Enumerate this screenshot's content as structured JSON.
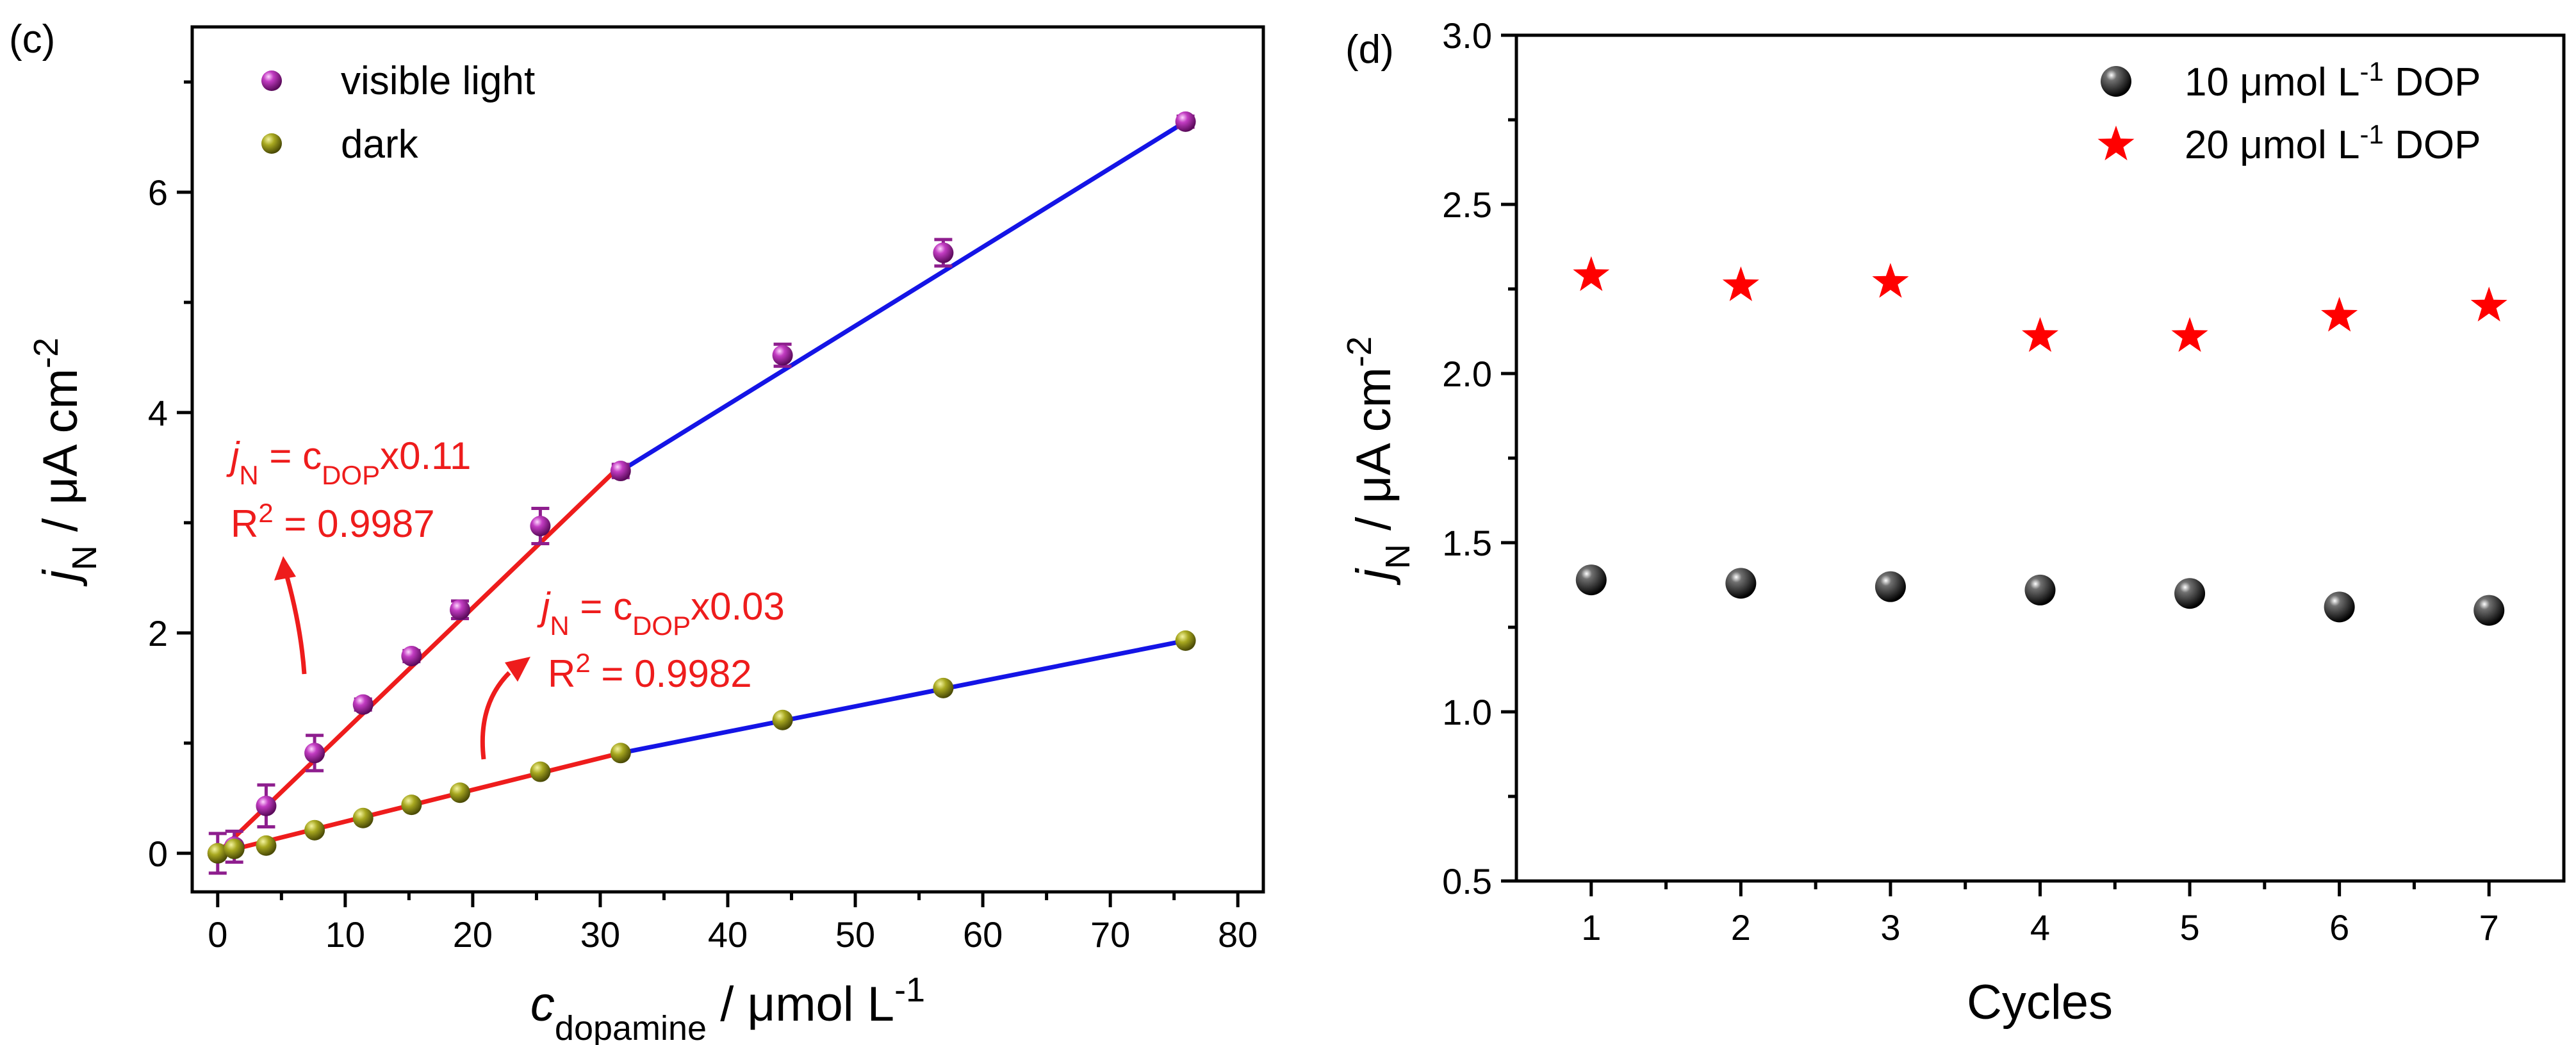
{
  "chart_data": [
    {
      "panel": "(c)",
      "type": "scatter",
      "xlabel_main": "c",
      "xlabel_sub": "dopamine",
      "xlabel_rest": " / μmol L",
      "xlabel_sup": "-1",
      "ylabel_main": "j",
      "ylabel_sub": "N",
      "ylabel_rest": " / μA cm",
      "ylabel_sup": "-2",
      "xlim": [
        -2,
        82
      ],
      "ylim": [
        -0.35,
        7.5
      ],
      "xticks": [
        0,
        10,
        20,
        30,
        40,
        50,
        60,
        70,
        80
      ],
      "yticks": [
        0,
        2,
        4,
        6
      ],
      "legend_position": "top-left",
      "series": [
        {
          "name": "visible light",
          "color": "#8e1e8e",
          "x": [
            0,
            1.3,
            3.8,
            7.6,
            11.4,
            15.2,
            19.0,
            25.3,
            31.6,
            44.3,
            56.9,
            75.9
          ],
          "y": [
            0.0,
            0.06,
            0.43,
            0.91,
            1.35,
            1.79,
            2.21,
            2.97,
            3.47,
            4.52,
            5.45,
            6.64
          ],
          "err": [
            0.18,
            0.14,
            0.19,
            0.16,
            0.05,
            0.05,
            0.08,
            0.16,
            0.06,
            0.1,
            0.12,
            0.05
          ]
        },
        {
          "name": "dark",
          "color": "#8a8a12",
          "x": [
            0,
            1.3,
            3.8,
            7.6,
            11.4,
            15.2,
            19.0,
            25.3,
            31.6,
            44.3,
            56.9,
            75.9
          ],
          "y": [
            0.0,
            0.04,
            0.07,
            0.21,
            0.32,
            0.44,
            0.55,
            0.74,
            0.91,
            1.21,
            1.5,
            1.93
          ],
          "err": [
            0,
            0,
            0,
            0,
            0,
            0,
            0,
            0,
            0,
            0,
            0,
            0
          ]
        }
      ],
      "fit_lines": [
        {
          "color": "#ee1c1c",
          "x": [
            0,
            31.6
          ],
          "y": [
            0.0,
            3.52
          ]
        },
        {
          "color": "#1414e6",
          "x": [
            31.6,
            75.9
          ],
          "y": [
            3.47,
            6.64
          ]
        },
        {
          "color": "#ee1c1c",
          "x": [
            0,
            31.6
          ],
          "y": [
            0.0,
            0.91
          ]
        },
        {
          "color": "#1414e6",
          "x": [
            31.6,
            75.9
          ],
          "y": [
            0.91,
            1.93
          ]
        }
      ],
      "annotations": [
        {
          "j": "j",
          "sub_n": "N",
          "eq": " = c",
          "sub_dop": "DOP",
          "factor": "x0.11",
          "r_label": "R",
          "r_sup": "2",
          "r_value": " = 0.9987"
        },
        {
          "j": "j",
          "sub_n": "N",
          "eq": " = c",
          "sub_dop": "DOP",
          "factor": "x0.03",
          "r_label": "R",
          "r_sup": "2",
          "r_value": " = 0.9982"
        }
      ],
      "annotation_color": "#ee1c1c"
    },
    {
      "panel": "(d)",
      "type": "scatter",
      "xlabel": "Cycles",
      "ylabel_main": "j",
      "ylabel_sub": "N",
      "ylabel_rest": " / μA cm",
      "ylabel_sup": "-2",
      "xlim": [
        0.5,
        7.5
      ],
      "ylim": [
        0.5,
        3.0
      ],
      "xticks": [
        1,
        2,
        3,
        4,
        5,
        6,
        7
      ],
      "yticks": [
        0.5,
        1.0,
        1.5,
        2.0,
        2.5,
        3.0
      ],
      "ytick_labels": [
        "0.5",
        "1.0",
        "1.5",
        "2.0",
        "2.5",
        "3.0"
      ],
      "legend_position": "top-right",
      "series": [
        {
          "name": "10 μmol L-1 DOP",
          "legend_pre": "10 μmol L",
          "legend_sup": "-1",
          "legend_post": " DOP",
          "marker": "sphere",
          "color": "#000000",
          "x": [
            1,
            2,
            3,
            4,
            5,
            6,
            7
          ],
          "y": [
            1.39,
            1.38,
            1.37,
            1.36,
            1.35,
            1.31,
            1.3
          ]
        },
        {
          "name": "20 μmol L-1 DOP",
          "legend_pre": "20 μmol L",
          "legend_sup": "-1",
          "legend_post": " DOP",
          "marker": "star",
          "color": "#ff0000",
          "x": [
            1,
            2,
            3,
            4,
            5,
            6,
            7
          ],
          "y": [
            2.29,
            2.26,
            2.27,
            2.11,
            2.11,
            2.17,
            2.2
          ]
        }
      ]
    }
  ]
}
